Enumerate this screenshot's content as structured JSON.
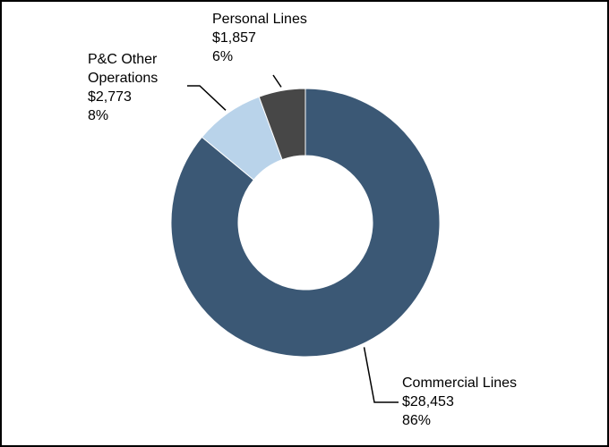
{
  "chart_data": {
    "type": "pie",
    "donut": true,
    "title": "",
    "legend": "none",
    "slices": [
      {
        "name_lines": [
          "Commercial Lines"
        ],
        "value_label": "$28,453",
        "value": 28453,
        "percent_label": "86%",
        "color": "#3b5875"
      },
      {
        "name_lines": [
          "P&C Other",
          "Operations"
        ],
        "value_label": "$2,773",
        "value": 2773,
        "percent_label": "8%",
        "color": "#b9d3ea"
      },
      {
        "name_lines": [
          "Personal Lines"
        ],
        "value_label": "$1,857",
        "value": 1857,
        "percent_label": "6%",
        "color": "#474747"
      }
    ]
  }
}
